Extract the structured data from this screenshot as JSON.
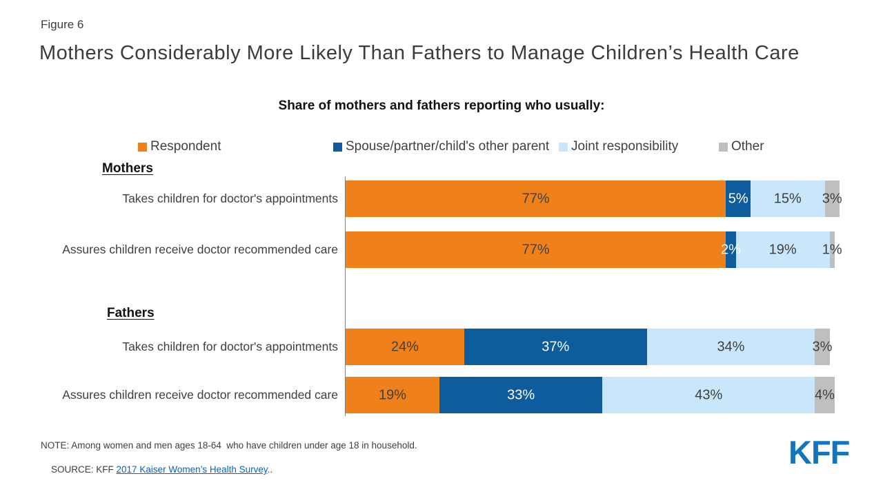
{
  "figure_label": "Figure 6",
  "title": "Mothers Considerably More Likely Than Fathers to Manage Children’s Health Care",
  "subtitle": "Share of mothers and fathers reporting who usually:",
  "chart_data": {
    "type": "bar",
    "orientation": "horizontal",
    "stacked": true,
    "xlim": [
      0,
      100
    ],
    "value_suffix": "%",
    "legend_position": "top",
    "grid": false,
    "legend": [
      {
        "label": "Respondent",
        "color": "#F08019",
        "value_text_color": "#404040"
      },
      {
        "label": "Spouse/partner/child's other parent",
        "color": "#0E5C9E",
        "value_text_color": "#FFFFFF"
      },
      {
        "label": "Joint responsibility",
        "color": "#C9E6FB",
        "value_text_color": "#404040"
      },
      {
        "label": "Other",
        "color": "#BFBFBF",
        "value_text_color": "#404040"
      }
    ],
    "groups": [
      {
        "label": "Mothers",
        "rows": [
          {
            "category": "Takes children for doctor's appointments",
            "values": [
              77,
              5,
              15,
              3
            ]
          },
          {
            "category": "Assures children receive doctor recommended care",
            "values": [
              77,
              2,
              19,
              1
            ]
          }
        ]
      },
      {
        "label": "Fathers",
        "rows": [
          {
            "category": "Takes children for doctor's appointments",
            "values": [
              24,
              37,
              34,
              3
            ]
          },
          {
            "category": "Assures children receive doctor recommended care",
            "values": [
              19,
              33,
              43,
              4
            ]
          }
        ]
      }
    ]
  },
  "note": "NOTE: Among women and men ages 18-64  who have children under age 18 in household.",
  "source": {
    "prefix": "SOURCE: KFF ",
    "link_text": "2017 Kaiser Women’s Health Survey",
    "suffix": ".."
  },
  "logo_text": "KFF",
  "colors": {
    "orange": "#F08019",
    "dark_blue": "#0E5C9E",
    "light_blue": "#C9E6FB",
    "gray": "#BFBFBF",
    "kff_blue": "#1376BD",
    "link_blue": "#0563C1",
    "axis_gray": "#808080"
  }
}
